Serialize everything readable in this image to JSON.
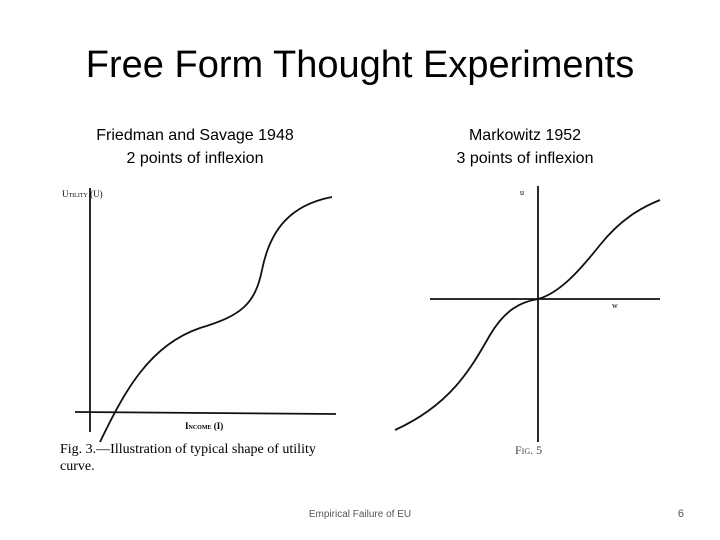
{
  "title": "Free Form Thought Experiments",
  "left": {
    "caption": [
      "Friedman and Savage 1948",
      "2 points of inflexion"
    ],
    "figure": {
      "y_label": "Utility (U)",
      "x_label": "Income (I)",
      "caption": "Fig. 3.—Illustration of typical shape of utility curve."
    }
  },
  "right": {
    "caption": [
      "Markowitz 1952",
      "3 points of inflexion"
    ],
    "figure": {
      "y_label": "u",
      "x_label": "w",
      "caption": "Fig. 5"
    }
  },
  "footer": "Empirical Failure of EU",
  "page_number": "6"
}
